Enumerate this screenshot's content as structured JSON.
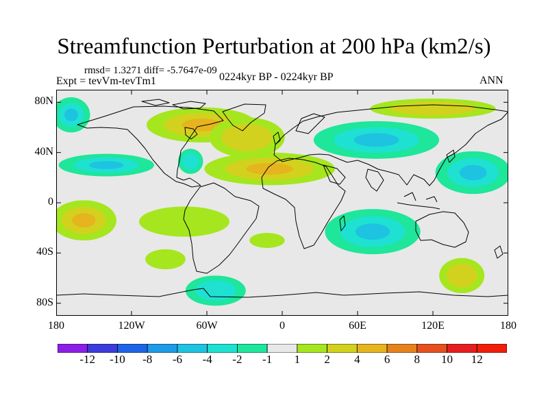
{
  "header": {
    "title": "Streamfunction Perturbation at 200 hPa (km2/s)",
    "stats": "rmsd= 1.3271 diff= -5.7647e-09",
    "experiment": "Expt = tevVm-tevTm1",
    "period": "0224kyr BP - 0224kyr BP",
    "season": "ANN"
  },
  "map": {
    "projection": "cylindrical equidistant",
    "lat_ticks": [
      {
        "lat": 80,
        "label": "80N"
      },
      {
        "lat": 40,
        "label": "40N"
      },
      {
        "lat": 0,
        "label": "0"
      },
      {
        "lat": -40,
        "label": "40S"
      },
      {
        "lat": -80,
        "label": "80S"
      }
    ],
    "lon_ticks": [
      {
        "lon": -180,
        "label": "180"
      },
      {
        "lon": -120,
        "label": "120W"
      },
      {
        "lon": -60,
        "label": "60W"
      },
      {
        "lon": 0,
        "label": "0"
      },
      {
        "lon": 60,
        "label": "60E"
      },
      {
        "lon": 120,
        "label": "120E"
      },
      {
        "lon": 180,
        "label": "180"
      }
    ],
    "background_color": "#e8e8e8",
    "anomalies": [
      {
        "region": "north-pacific-west",
        "lon": -168,
        "lat": 70,
        "rlon": 15,
        "rlat": 14,
        "levels": [
          -1,
          -2,
          -3
        ]
      },
      {
        "region": "north-america-pos",
        "lon": -64,
        "lat": 62,
        "rlon": 44,
        "rlat": 14,
        "levels": [
          1,
          2,
          3
        ]
      },
      {
        "region": "north-atlantic-arc",
        "lon": -28,
        "lat": 52,
        "rlon": 30,
        "rlat": 16,
        "levels": [
          1,
          2
        ]
      },
      {
        "region": "east-pacific-neg",
        "lon": -140,
        "lat": 30,
        "rlon": 38,
        "rlat": 9,
        "levels": [
          -1,
          -2,
          -3
        ]
      },
      {
        "region": "caribbean-neg",
        "lon": -73,
        "lat": 33,
        "rlon": 10,
        "rlat": 10,
        "levels": [
          -1,
          -2
        ]
      },
      {
        "region": "tropical-atlantic-pos",
        "lon": -10,
        "lat": 27,
        "rlon": 52,
        "rlat": 13,
        "levels": [
          1,
          2,
          3
        ]
      },
      {
        "region": "siberia-neg",
        "lon": 75,
        "lat": 50,
        "rlon": 50,
        "rlat": 15,
        "levels": [
          -1,
          -2,
          -3
        ]
      },
      {
        "region": "east-asia-neg",
        "lon": 152,
        "lat": 24,
        "rlon": 30,
        "rlat": 17,
        "levels": [
          -1,
          -2,
          -3
        ]
      },
      {
        "region": "arctic-pos",
        "lon": 120,
        "lat": 75,
        "rlon": 50,
        "rlat": 8,
        "levels": [
          1,
          2
        ]
      },
      {
        "region": "central-pacific-pos",
        "lon": -158,
        "lat": -14,
        "rlon": 26,
        "rlat": 16,
        "levels": [
          1,
          2,
          3
        ]
      },
      {
        "region": "south-america-pos",
        "lon": -78,
        "lat": -15,
        "rlon": 36,
        "rlat": 12,
        "levels": [
          1
        ]
      },
      {
        "region": "south-atlantic-pos",
        "lon": -12,
        "lat": -30,
        "rlon": 14,
        "rlat": 6,
        "levels": [
          1
        ]
      },
      {
        "region": "south-indian-neg",
        "lon": 72,
        "lat": -23,
        "rlon": 38,
        "rlat": 18,
        "levels": [
          -1,
          -2,
          -3
        ]
      },
      {
        "region": "southeast-pacific-pos",
        "lon": -93,
        "lat": -45,
        "rlon": 16,
        "rlat": 8,
        "levels": [
          1
        ]
      },
      {
        "region": "southern-ocean-neg",
        "lon": -53,
        "lat": -70,
        "rlon": 24,
        "rlat": 12,
        "levels": [
          -1,
          -2
        ]
      },
      {
        "region": "southwest-pacific-pos",
        "lon": 143,
        "lat": -58,
        "rlon": 18,
        "rlat": 14,
        "levels": [
          1,
          2
        ]
      }
    ]
  },
  "colorbar": {
    "boundaries": [
      -12,
      -10,
      -8,
      -6,
      -4,
      -2,
      -1,
      1,
      2,
      4,
      6,
      8,
      10,
      12
    ],
    "labels": [
      "-12",
      "-10",
      "-8",
      "-6",
      "-4",
      "-2",
      "-1",
      "1",
      "2",
      "4",
      "6",
      "8",
      "10",
      "12"
    ],
    "colors": [
      "#8c1ee6",
      "#3c3cdc",
      "#1e64e6",
      "#1e9be6",
      "#1ec3e1",
      "#1ee1d2",
      "#1ee69b",
      "#e8e8e8",
      "#a5e61e",
      "#d2d21e",
      "#e6b41e",
      "#e6821e",
      "#e6501e",
      "#e61e1e",
      "#f01e0a"
    ]
  }
}
